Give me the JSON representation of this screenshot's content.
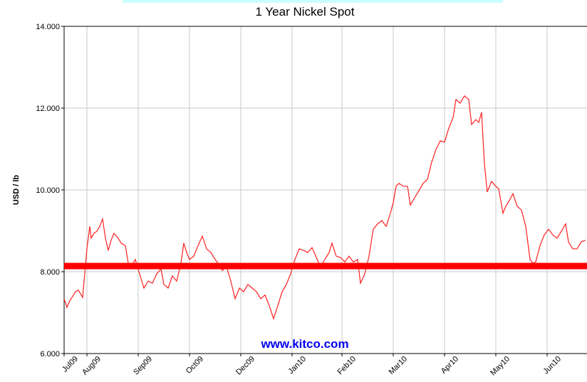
{
  "chart_data": {
    "type": "line",
    "title": "1 Year Nickel Spot",
    "y_label": "USD / lb",
    "watermark": "www.kitco.com",
    "xlim": [
      0,
      367
    ],
    "xticks": [
      {
        "value": 0,
        "label": "Jul09"
      },
      {
        "value": 16,
        "label": "Aug09"
      },
      {
        "value": 52,
        "label": "Sep09"
      },
      {
        "value": 88,
        "label": "Oct09"
      },
      {
        "value": 124,
        "label": "Dec09"
      },
      {
        "value": 160,
        "label": "Jan10"
      },
      {
        "value": 195,
        "label": "Feb10"
      },
      {
        "value": 231,
        "label": "Mar10"
      },
      {
        "value": 267,
        "label": "Apr10"
      },
      {
        "value": 303,
        "label": "May10"
      },
      {
        "value": 339,
        "label": "Jun10"
      }
    ],
    "ylim": [
      6,
      14
    ],
    "yticks": [
      {
        "value": 6,
        "label": "6.000"
      },
      {
        "value": 8,
        "label": "8.000"
      },
      {
        "value": 10,
        "label": "10.000"
      },
      {
        "value": 12,
        "label": "12.000"
      },
      {
        "value": 14,
        "label": "14.000"
      }
    ],
    "grid": true,
    "reference_line": {
      "value": 8.14,
      "color": "#ff0000"
    },
    "series": [
      {
        "color": "#ff2020",
        "x": [
          0,
          2,
          4,
          8,
          10,
          13,
          14,
          16,
          18,
          19,
          21,
          23,
          25,
          27,
          29,
          31,
          33,
          35,
          38,
          40,
          43,
          45,
          47,
          50,
          53,
          56,
          59,
          62,
          65,
          68,
          70,
          73,
          76,
          79,
          82,
          84,
          86,
          88,
          91,
          94,
          97,
          100,
          103,
          106,
          108,
          111,
          114,
          117,
          120,
          123,
          126,
          129,
          132,
          135,
          138,
          141,
          144,
          147,
          150,
          153,
          156,
          159,
          162,
          165,
          168,
          171,
          174,
          177,
          180,
          183,
          186,
          188,
          191,
          194,
          197,
          200,
          203,
          206,
          208,
          211,
          214,
          217,
          220,
          223,
          226,
          229,
          231,
          233,
          235,
          238,
          241,
          243,
          246,
          249,
          252,
          255,
          258,
          261,
          264,
          267,
          270,
          273,
          275,
          278,
          281,
          284,
          286,
          289,
          291,
          293,
          295,
          297,
          300,
          303,
          305,
          308,
          310,
          313,
          315,
          318,
          321,
          324,
          327,
          329,
          331,
          334,
          337,
          340,
          343,
          346,
          349,
          352,
          354,
          357,
          360,
          363,
          366
        ],
        "values": [
          7.34,
          7.13,
          7.29,
          7.51,
          7.55,
          7.37,
          7.77,
          8.56,
          9.11,
          8.82,
          8.94,
          8.99,
          9.11,
          9.29,
          8.82,
          8.52,
          8.77,
          8.94,
          8.82,
          8.7,
          8.64,
          8.21,
          8.12,
          8.3,
          7.95,
          7.6,
          7.77,
          7.72,
          7.95,
          8.07,
          7.69,
          7.6,
          7.9,
          7.77,
          8.21,
          8.7,
          8.47,
          8.3,
          8.38,
          8.64,
          8.87,
          8.56,
          8.47,
          8.3,
          8.21,
          8.03,
          8.12,
          7.77,
          7.34,
          7.6,
          7.51,
          7.69,
          7.6,
          7.51,
          7.34,
          7.43,
          7.17,
          6.85,
          7.17,
          7.51,
          7.69,
          7.95,
          8.3,
          8.56,
          8.52,
          8.47,
          8.59,
          8.35,
          8.12,
          8.3,
          8.47,
          8.7,
          8.38,
          8.35,
          8.24,
          8.38,
          8.24,
          8.3,
          7.72,
          7.95,
          8.38,
          9.04,
          9.17,
          9.25,
          9.11,
          9.43,
          9.69,
          10.09,
          10.16,
          10.09,
          10.09,
          9.63,
          9.81,
          9.98,
          10.16,
          10.26,
          10.68,
          10.99,
          11.2,
          11.17,
          11.51,
          11.77,
          12.21,
          12.12,
          12.3,
          12.21,
          11.6,
          11.72,
          11.65,
          11.9,
          10.64,
          9.95,
          10.21,
          10.09,
          10.03,
          9.43,
          9.6,
          9.77,
          9.91,
          9.6,
          9.51,
          9.11,
          8.3,
          8.21,
          8.24,
          8.64,
          8.9,
          9.04,
          8.9,
          8.82,
          8.99,
          9.17,
          8.73,
          8.56,
          8.56,
          8.73,
          8.77
        ]
      }
    ]
  }
}
